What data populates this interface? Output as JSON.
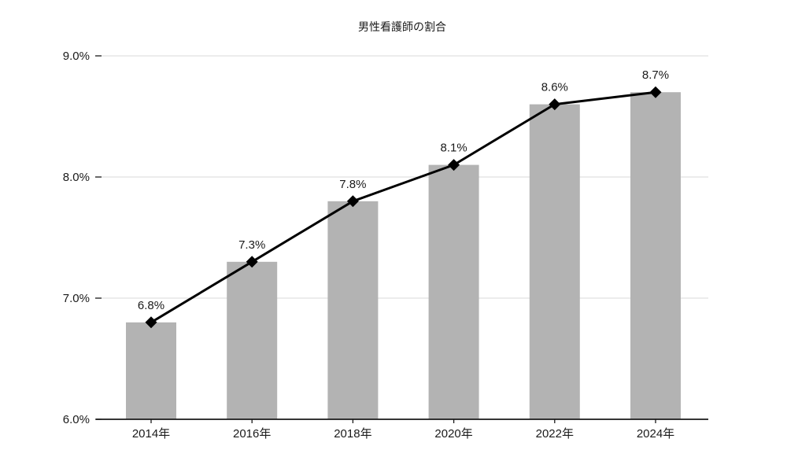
{
  "chart_data": {
    "type": "bar",
    "overlay": "line",
    "title": "男性看護師の割合",
    "categories": [
      "2014年",
      "2016年",
      "2018年",
      "2020年",
      "2022年",
      "2024年"
    ],
    "values": [
      6.8,
      7.3,
      7.8,
      8.1,
      8.6,
      8.7
    ],
    "data_labels": [
      "6.8%",
      "7.3%",
      "7.8%",
      "8.1%",
      "8.6%",
      "8.7%"
    ],
    "ylim": [
      6.0,
      9.0
    ],
    "yticks": [
      6.0,
      7.0,
      8.0,
      9.0
    ],
    "ytick_labels": [
      "6.0%",
      "7.0%",
      "8.0%",
      "9.0%"
    ],
    "grid": true,
    "legend": "none",
    "marker": "diamond",
    "colors": {
      "bar": "#b3b3b3",
      "line": "#000000",
      "marker": "#000000",
      "gridline": "#d9d9d9",
      "axis": "#1a1a1a",
      "text": "#1a1a1a"
    }
  }
}
